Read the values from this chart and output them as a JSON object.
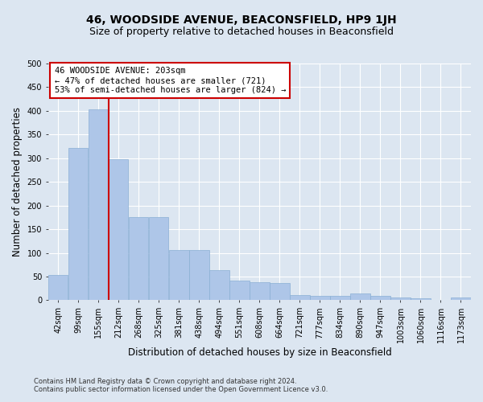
{
  "title": "46, WOODSIDE AVENUE, BEACONSFIELD, HP9 1JH",
  "subtitle": "Size of property relative to detached houses in Beaconsfield",
  "xlabel": "Distribution of detached houses by size in Beaconsfield",
  "ylabel": "Number of detached properties",
  "footnote1": "Contains HM Land Registry data © Crown copyright and database right 2024.",
  "footnote2": "Contains public sector information licensed under the Open Government Licence v3.0.",
  "categories": [
    "42sqm",
    "99sqm",
    "155sqm",
    "212sqm",
    "268sqm",
    "325sqm",
    "381sqm",
    "438sqm",
    "494sqm",
    "551sqm",
    "608sqm",
    "664sqm",
    "721sqm",
    "777sqm",
    "834sqm",
    "890sqm",
    "947sqm",
    "1003sqm",
    "1060sqm",
    "1116sqm",
    "1173sqm"
  ],
  "values": [
    53,
    322,
    403,
    298,
    176,
    176,
    106,
    106,
    63,
    42,
    38,
    36,
    11,
    10,
    10,
    15,
    10,
    6,
    4,
    1,
    6
  ],
  "bar_color": "#aec6e8",
  "bar_edge_color": "#8aafd4",
  "vline_color": "#cc0000",
  "annotation_text": "46 WOODSIDE AVENUE: 203sqm\n← 47% of detached houses are smaller (721)\n53% of semi-detached houses are larger (824) →",
  "annotation_box_color": "#cc0000",
  "ylim": [
    0,
    500
  ],
  "yticks": [
    0,
    50,
    100,
    150,
    200,
    250,
    300,
    350,
    400,
    450,
    500
  ],
  "fig_bg_color": "#dce6f1",
  "plot_bg_color": "#dce6f1",
  "grid_color": "#ffffff",
  "title_fontsize": 10,
  "subtitle_fontsize": 9,
  "axis_label_fontsize": 8.5,
  "tick_fontsize": 7,
  "annotation_fontsize": 7.5,
  "footnote_fontsize": 6
}
